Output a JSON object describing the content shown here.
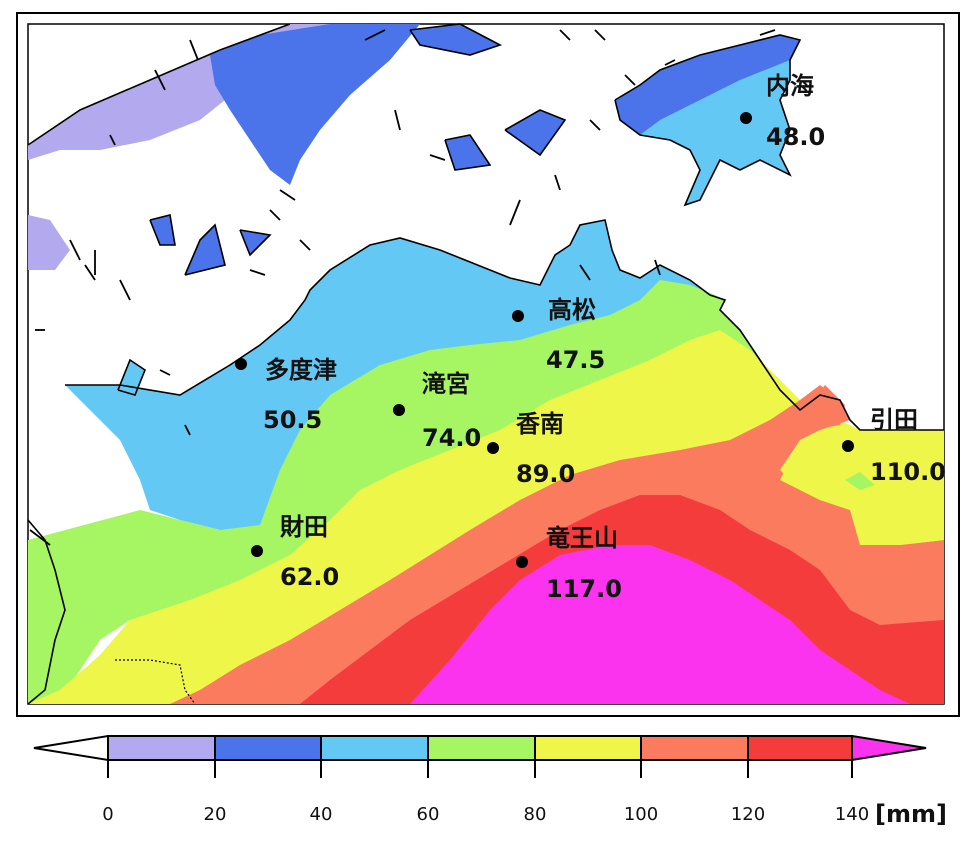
{
  "map": {
    "stations": [
      {
        "id": "uchinomi",
        "name": "内海",
        "value": "48.0"
      },
      {
        "id": "takamatsu",
        "name": "高松",
        "value": "47.5"
      },
      {
        "id": "tadotsu",
        "name": "多度津",
        "value": "50.5"
      },
      {
        "id": "takinomiya",
        "name": "滝宮",
        "value": "74.0"
      },
      {
        "id": "konan",
        "name": "香南",
        "value": "89.0"
      },
      {
        "id": "hikita",
        "name": "引田",
        "value": "110.0"
      },
      {
        "id": "zaita",
        "name": "財田",
        "value": "62.0"
      },
      {
        "id": "ryuozan",
        "name": "竜王山",
        "value": "117.0"
      }
    ]
  },
  "legend": {
    "ticks": [
      "0",
      "20",
      "40",
      "60",
      "80",
      "100",
      "120",
      "140"
    ],
    "unit": "[mm]",
    "colors": [
      "#ffffff",
      "#b3a9ee",
      "#4b74eb",
      "#64c8f4",
      "#a6f562",
      "#eef64a",
      "#fa7b5e",
      "#f53c3c",
      "#fb32ee"
    ]
  }
}
